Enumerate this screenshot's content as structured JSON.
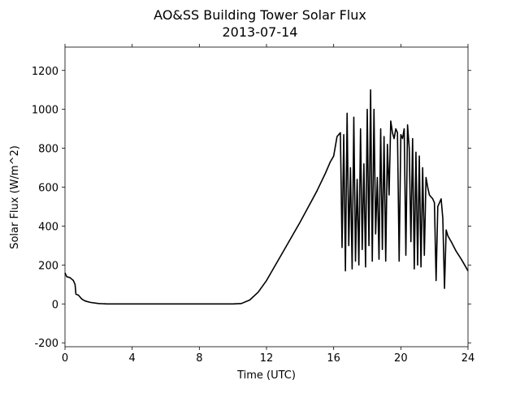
{
  "chart_data": {
    "type": "line",
    "title": "AO&SS Building Tower Solar Flux",
    "subtitle": "2013-07-14",
    "x_label": "Time (UTC)",
    "y_label": "Solar Flux (W/m^2)",
    "xlim": [
      0,
      24
    ],
    "xticks": [
      0,
      4,
      8,
      12,
      16,
      20,
      24
    ],
    "ylim": [
      -220,
      1320
    ],
    "yticks": [
      -200,
      0,
      200,
      400,
      600,
      800,
      1000,
      1200
    ],
    "series": [
      {
        "name": "Solar Flux",
        "color": "#000000",
        "x": [
          0,
          0.1,
          0.3,
          0.5,
          0.6,
          0.65,
          0.8,
          0.9,
          1.0,
          1.2,
          1.5,
          2,
          2.5,
          10,
          10.5,
          11,
          11.5,
          12,
          13,
          14,
          15,
          15.5,
          15.8,
          16,
          16.2,
          16.4,
          16.5,
          16.6,
          16.7,
          16.8,
          16.9,
          17.0,
          17.1,
          17.2,
          17.3,
          17.4,
          17.5,
          17.6,
          17.7,
          17.8,
          17.9,
          18.0,
          18.1,
          18.2,
          18.3,
          18.4,
          18.5,
          18.6,
          18.7,
          18.8,
          18.9,
          19.0,
          19.1,
          19.2,
          19.3,
          19.4,
          19.5,
          19.6,
          19.7,
          19.8,
          19.9,
          20.0,
          20.1,
          20.2,
          20.3,
          20.4,
          20.5,
          20.6,
          20.7,
          20.8,
          20.9,
          21.0,
          21.1,
          21.2,
          21.3,
          21.4,
          21.5,
          21.6,
          21.7,
          21.9,
          22.0,
          22.1,
          22.2,
          22.4,
          22.5,
          22.6,
          22.7,
          22.8,
          23,
          23.3,
          23.6,
          24
        ],
        "values": [
          160,
          140,
          135,
          120,
          100,
          50,
          45,
          35,
          25,
          15,
          8,
          2,
          0,
          0,
          2,
          20,
          60,
          120,
          270,
          420,
          580,
          670,
          730,
          760,
          860,
          880,
          290,
          870,
          170,
          980,
          300,
          700,
          180,
          960,
          220,
          640,
          200,
          900,
          280,
          720,
          190,
          1000,
          300,
          1100,
          220,
          1000,
          360,
          650,
          230,
          900,
          280,
          860,
          220,
          820,
          560,
          940,
          880,
          850,
          900,
          880,
          220,
          870,
          850,
          900,
          250,
          920,
          800,
          320,
          850,
          180,
          780,
          200,
          760,
          190,
          700,
          250,
          650,
          600,
          560,
          540,
          520,
          120,
          500,
          540,
          440,
          80,
          380,
          350,
          320,
          270,
          230,
          170
        ]
      }
    ]
  }
}
